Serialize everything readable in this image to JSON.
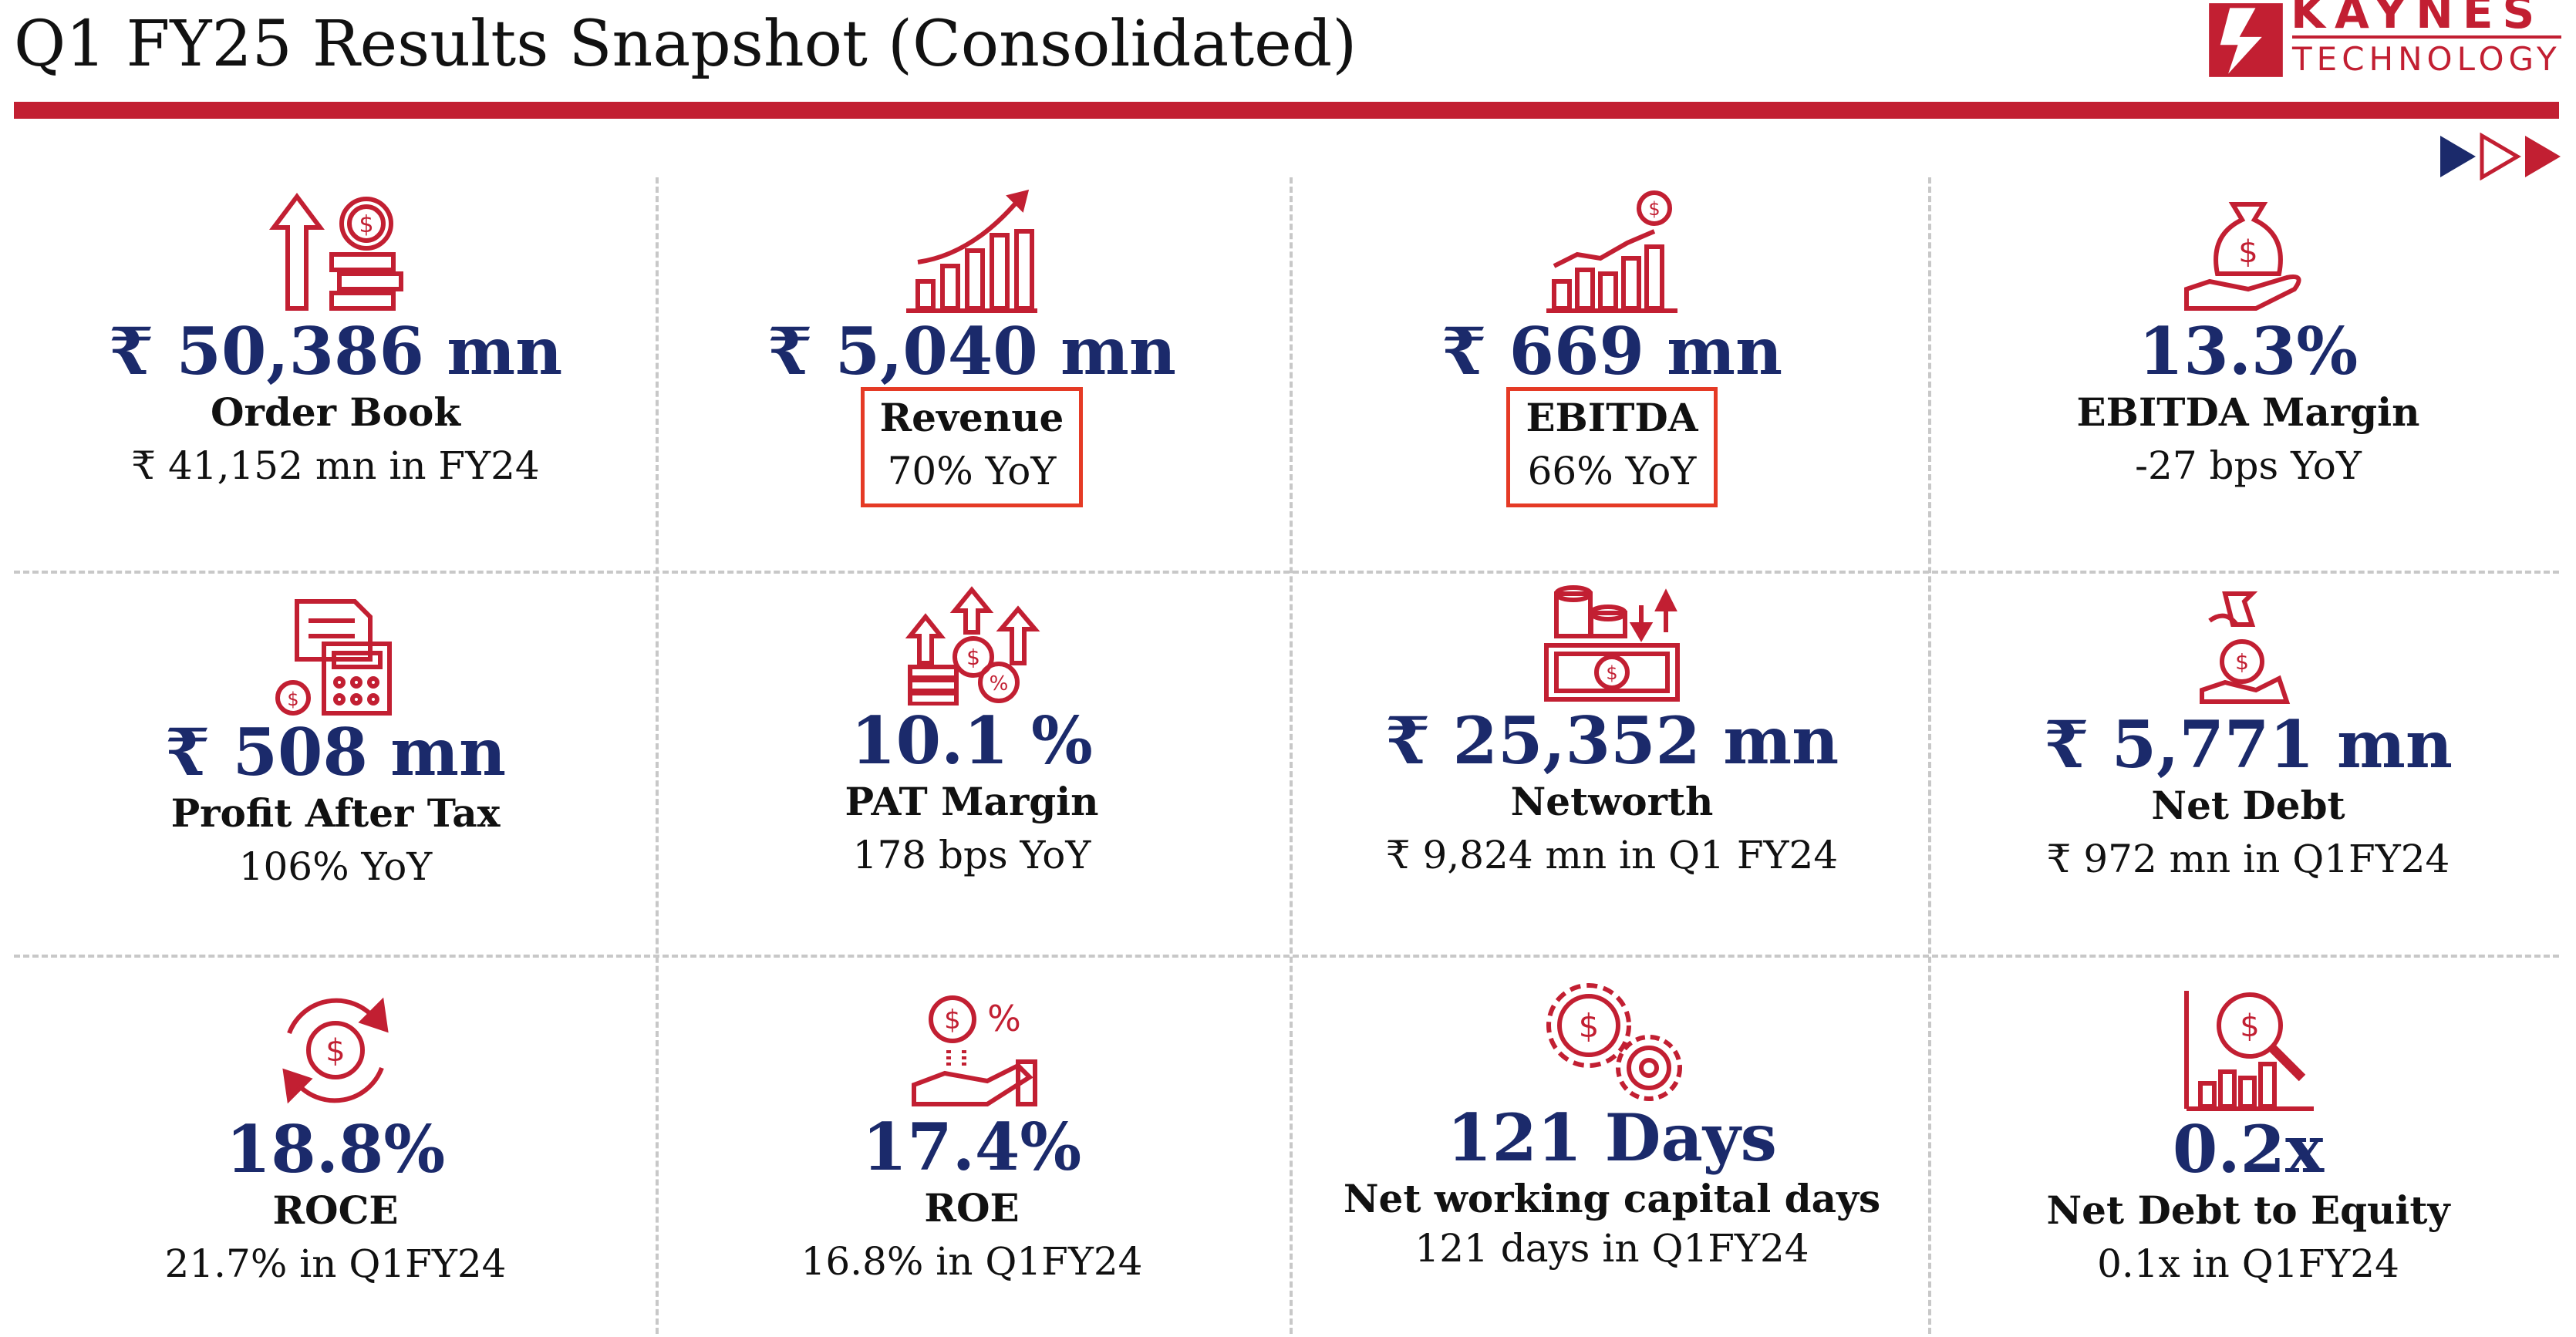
{
  "header": {
    "title": "Q1 FY25 Results Snapshot (Consolidated)",
    "logo_line1": "KAYNES",
    "logo_line2": "TECHNOLOGY"
  },
  "colors": {
    "accent_red": "#c21f32",
    "value_blue": "#1b2a6b",
    "highlight_border": "#e53a25",
    "divider": "#c8c8c8"
  },
  "metrics": [
    {
      "icon": "order-book-icon",
      "value": "₹ 50,386 mn",
      "label": "Order Book",
      "sub": "₹ 41,152 mn in FY24",
      "highlighted": false
    },
    {
      "icon": "revenue-chart-icon",
      "value": "₹ 5,040 mn",
      "label": "Revenue",
      "sub": "70% YoY",
      "highlighted": true
    },
    {
      "icon": "ebitda-chart-icon",
      "value": "₹ 669 mn",
      "label": "EBITDA",
      "sub": "66% YoY",
      "highlighted": true
    },
    {
      "icon": "money-bag-hand-icon",
      "value": "13.3%",
      "label": "EBITDA Margin",
      "sub": "-27 bps YoY",
      "highlighted": false
    },
    {
      "icon": "calculator-coins-icon",
      "value": "₹ 508 mn",
      "label": "Profit After Tax",
      "sub": "106% YoY",
      "highlighted": false
    },
    {
      "icon": "growth-percent-icon",
      "value": "10.1 %",
      "label": "PAT Margin",
      "sub": "178 bps YoY",
      "highlighted": false
    },
    {
      "icon": "cash-stack-icon",
      "value": "₹ 25,352 mn",
      "label": "Networth",
      "sub": "₹ 9,824 mn in Q1 FY24",
      "highlighted": false
    },
    {
      "icon": "hand-money-icon",
      "value": "₹ 5,771 mn",
      "label": "Net Debt",
      "sub": "₹ 972 mn in Q1FY24",
      "highlighted": false
    },
    {
      "icon": "return-cycle-icon",
      "value": "18.8%",
      "label": "ROCE",
      "sub": "21.7% in Q1FY24",
      "highlighted": false
    },
    {
      "icon": "hand-percent-icon",
      "value": "17.4%",
      "label": "ROE",
      "sub": "16.8% in Q1FY24",
      "highlighted": false
    },
    {
      "icon": "gears-money-icon",
      "value": "121 Days",
      "label": "Net working capital days",
      "sub": "121 days  in Q1FY24",
      "highlighted": false
    },
    {
      "icon": "magnifier-chart-icon",
      "value": "0.2x",
      "label": "Net Debt to Equity",
      "sub": "0.1x in Q1FY24",
      "highlighted": false
    }
  ]
}
